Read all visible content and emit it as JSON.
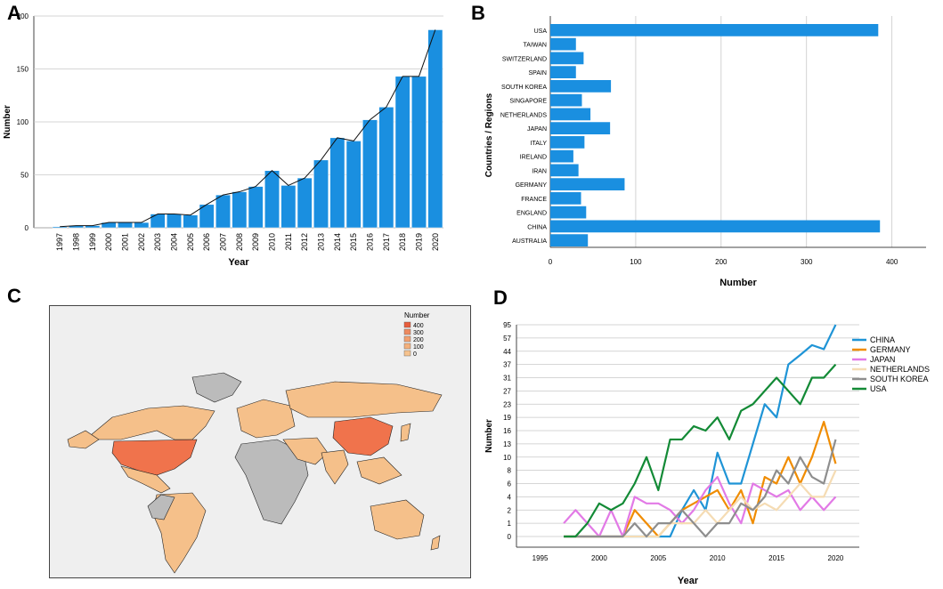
{
  "panels": {
    "a": "A",
    "b": "B",
    "c": "C",
    "d": "D"
  },
  "colors": {
    "bar": "#1a8fe0",
    "map_high": "#f0734c",
    "map_low": "#f5c08a",
    "map_none": "#bbbbbb",
    "grid": "#c8c8c8"
  },
  "chart_data": [
    {
      "id": "A",
      "type": "bar",
      "title": "",
      "xlabel": "Year",
      "ylabel": "Number",
      "ylim": [
        0,
        200
      ],
      "yticks": [
        0,
        50,
        100,
        150,
        200
      ],
      "categories": [
        "1997",
        "1998",
        "1999",
        "2000",
        "2001",
        "2002",
        "2003",
        "2004",
        "2005",
        "2006",
        "2007",
        "2008",
        "2009",
        "2010",
        "2011",
        "2012",
        "2013",
        "2014",
        "2015",
        "2016",
        "2017",
        "2018",
        "2019",
        "2020"
      ],
      "values": [
        1,
        2,
        2,
        5,
        5,
        5,
        13,
        13,
        12,
        22,
        31,
        34,
        39,
        54,
        40,
        47,
        64,
        85,
        82,
        102,
        114,
        143,
        143,
        187
      ],
      "overlay": "line through bar tops"
    },
    {
      "id": "B",
      "type": "bar",
      "orientation": "horizontal",
      "xlabel": "Number",
      "ylabel": "Countries / Regions",
      "xlim": [
        0,
        400
      ],
      "xticks": [
        0,
        100,
        200,
        300,
        400
      ],
      "categories": [
        "USA",
        "TAIWAN",
        "SWITZERLAND",
        "SPAIN",
        "SOUTH KOREA",
        "SINGAPORE",
        "NETHERLANDS",
        "JAPAN",
        "ITALY",
        "IRELAND",
        "IRAN",
        "GERMANY",
        "FRANCE",
        "ENGLAND",
        "CHINA",
        "AUSTRALIA"
      ],
      "values": [
        384,
        30,
        39,
        30,
        71,
        37,
        47,
        70,
        40,
        27,
        33,
        87,
        36,
        42,
        386,
        44
      ]
    },
    {
      "id": "C",
      "type": "map",
      "legend_title": "Number",
      "legend": [
        "400",
        "300",
        "200",
        "100",
        "0"
      ]
    },
    {
      "id": "D",
      "type": "line",
      "xlabel": "Year",
      "ylabel": "Number",
      "xlim": [
        1993,
        2022
      ],
      "xticks": [
        1995,
        2000,
        2005,
        2010,
        2015,
        2020
      ],
      "yticks": [
        "0",
        "1",
        "2",
        "4",
        "6",
        "8",
        "10",
        "13",
        "16",
        "19",
        "23",
        "27",
        "31",
        "37",
        "44",
        "57",
        "95"
      ],
      "x": [
        1997,
        1998,
        1999,
        2000,
        2001,
        2002,
        2003,
        2004,
        2005,
        2006,
        2007,
        2008,
        2009,
        2010,
        2011,
        2012,
        2013,
        2014,
        2015,
        2016,
        2017,
        2018,
        2019,
        2020
      ],
      "series": [
        {
          "name": "CHINA",
          "color": "#1f94d6",
          "values": [
            0,
            0,
            0,
            0,
            0,
            0,
            0,
            0,
            0,
            0,
            2,
            5,
            2,
            11,
            6,
            6,
            13,
            23,
            19,
            37,
            42,
            50,
            46,
            95
          ]
        },
        {
          "name": "GERMANY",
          "color": "#f08c00",
          "values": [
            0,
            0,
            0,
            0,
            0,
            0,
            2,
            1,
            0,
            1,
            2,
            3,
            4,
            5,
            2,
            5,
            1,
            7,
            6,
            10,
            6,
            10,
            18,
            9
          ]
        },
        {
          "name": "JAPAN",
          "color": "#e27ae6",
          "values": [
            1,
            2,
            1,
            0,
            2,
            0,
            4,
            3,
            3,
            2,
            1,
            2,
            5,
            7,
            3,
            1,
            6,
            5,
            4,
            5,
            2,
            4,
            2,
            4
          ]
        },
        {
          "name": "NETHERLANDS",
          "color": "#f5dcb4",
          "values": [
            0,
            0,
            0,
            0,
            0,
            0,
            0,
            0,
            0,
            1,
            1,
            1,
            2,
            1,
            2,
            4,
            2,
            3,
            2,
            4,
            6,
            4,
            4,
            8
          ]
        },
        {
          "name": "SOUTH KOREA",
          "color": "#8e8e8e",
          "values": [
            0,
            0,
            0,
            0,
            0,
            0,
            1,
            0,
            1,
            1,
            2,
            1,
            0,
            1,
            1,
            3,
            2,
            4,
            8,
            6,
            10,
            7,
            6,
            14
          ]
        },
        {
          "name": "USA",
          "color": "#138a36",
          "values": [
            0,
            0,
            1,
            3,
            2,
            3,
            6,
            10,
            5,
            14,
            14,
            17,
            16,
            19,
            14,
            21,
            23,
            27,
            31,
            27,
            23,
            31,
            31,
            37
          ]
        }
      ]
    }
  ]
}
